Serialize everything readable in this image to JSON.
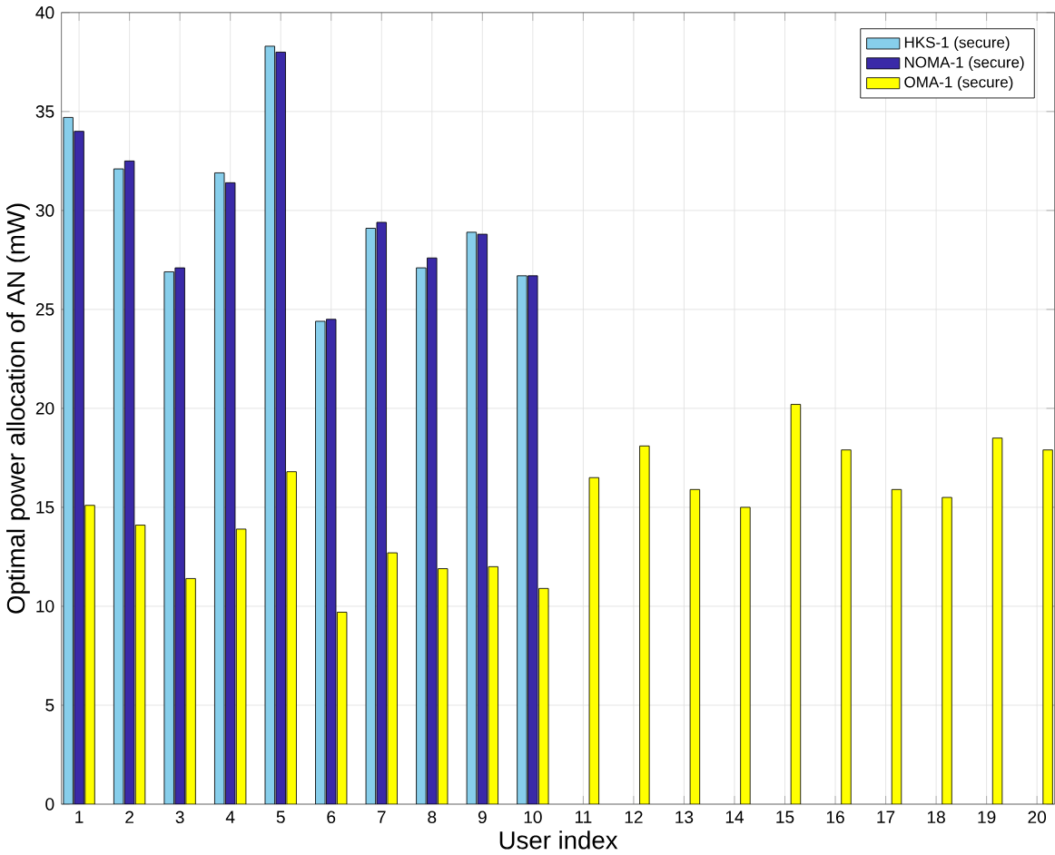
{
  "chart_data": {
    "type": "bar",
    "xlabel": "User index",
    "ylabel": "Optimal power allocation of AN (mW)",
    "categories": [
      "1",
      "2",
      "3",
      "4",
      "5",
      "6",
      "7",
      "8",
      "9",
      "10",
      "11",
      "12",
      "13",
      "14",
      "15",
      "16",
      "17",
      "18",
      "19",
      "20"
    ],
    "series": [
      {
        "name": "HKS-1 (secure)",
        "color": "#87ceeb",
        "values": [
          34.7,
          32.1,
          26.9,
          31.9,
          38.3,
          24.4,
          29.1,
          27.1,
          28.9,
          26.7,
          null,
          null,
          null,
          null,
          null,
          null,
          null,
          null,
          null,
          null
        ]
      },
      {
        "name": "NOMA-1 (secure)",
        "color": "#3a2aa8",
        "values": [
          34.0,
          32.5,
          27.1,
          31.4,
          38.0,
          24.5,
          29.4,
          27.6,
          28.8,
          26.7,
          null,
          null,
          null,
          null,
          null,
          null,
          null,
          null,
          null,
          null
        ]
      },
      {
        "name": "OMA-1 (secure)",
        "color": "#ffff00",
        "values": [
          15.1,
          14.1,
          11.4,
          13.9,
          16.8,
          9.7,
          12.7,
          11.9,
          12.0,
          10.9,
          16.5,
          18.1,
          15.9,
          15.0,
          20.2,
          17.9,
          15.9,
          15.5,
          18.5,
          17.9
        ]
      }
    ],
    "ylim": [
      0,
      40
    ],
    "yticks": [
      0,
      5,
      10,
      15,
      20,
      25,
      30,
      35,
      40
    ],
    "grid": true,
    "legend": "top right"
  }
}
